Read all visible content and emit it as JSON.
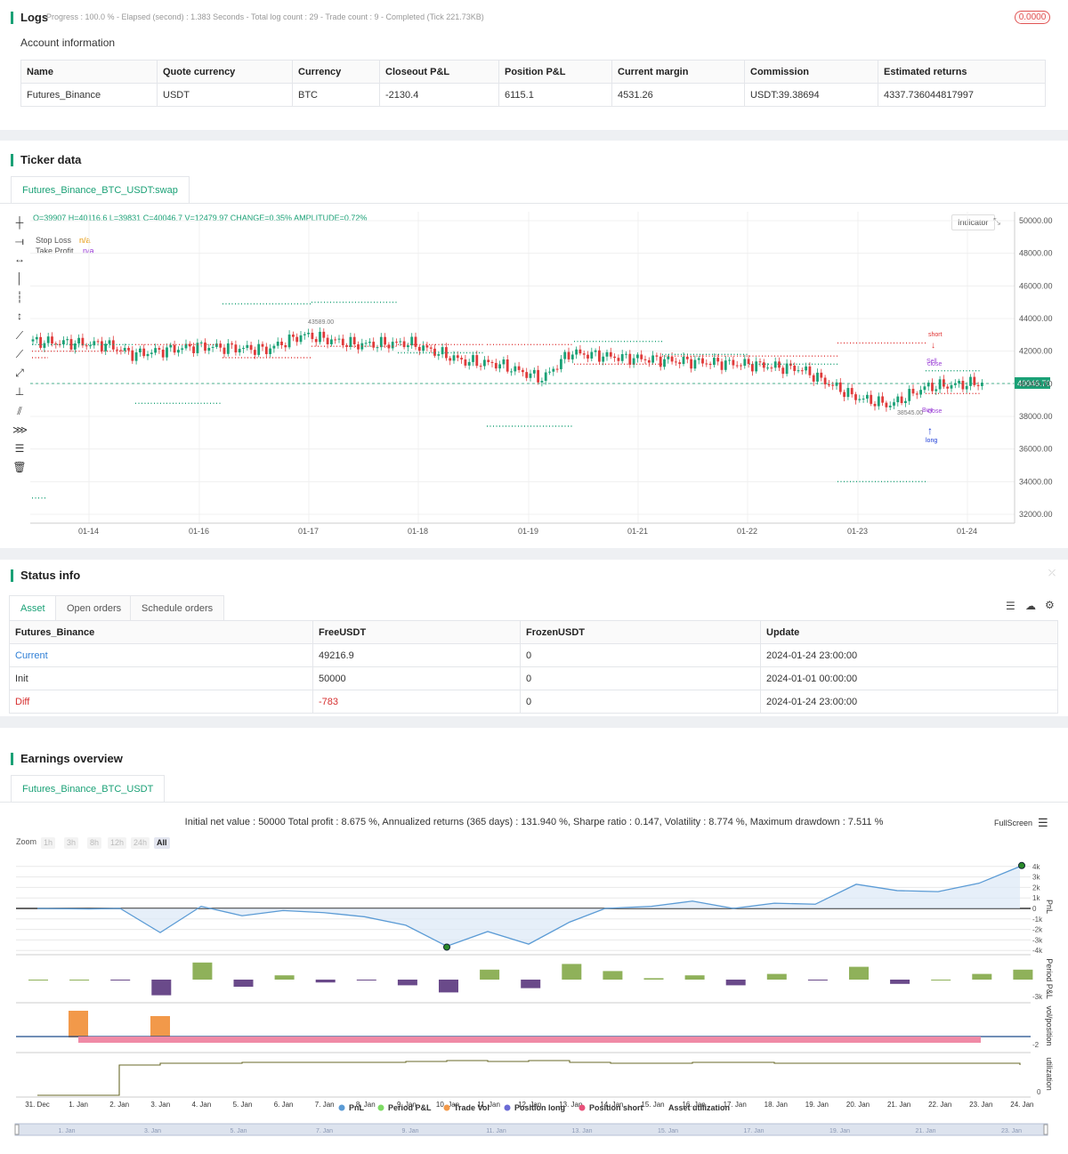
{
  "logs": {
    "title": "Logs",
    "progress": "Progress : 100.0 % - Elapsed (second) : 1.383  Seconds - Total log count : 29 - Trade count : 9 - Completed (Tick 221.73KB)",
    "badge": "0.0000",
    "account_title": "Account information",
    "account_headers": [
      "Name",
      "Quote currency",
      "Currency",
      "Closeout P&L",
      "Position P&L",
      "Current margin",
      "Commission",
      "Estimated returns"
    ],
    "account_row": [
      "Futures_Binance",
      "USDT",
      "BTC",
      "-2130.4",
      "6115.1",
      "4531.26",
      "USDT:39.38694",
      "4337.736044817997"
    ]
  },
  "ticker": {
    "title": "Ticker data",
    "tab": "Futures_Binance_BTC_USDT:swap",
    "ohlc": "O=39907 H=40116.6 L=39831 C=40046.7 V=12479.97 CHANGE=0.35% AMPLITUDE=0.72%",
    "stop_loss_label": "Stop Loss",
    "stop_loss_value": "n/a",
    "take_profit_label": "Take Profit",
    "take_profit_value": "n/a",
    "indicator_btn": "Indicator",
    "price_tag": "40046.70",
    "y_ticks": [
      "50000.00",
      "48000.00",
      "46000.00",
      "44000.00",
      "42000.00",
      "40000.00",
      "38000.00",
      "36000.00",
      "34000.00",
      "32000.00"
    ],
    "x_ticks": [
      "01-14",
      "01-16",
      "01-17",
      "01-18",
      "01-19",
      "01-21",
      "01-22",
      "01-23",
      "01-24"
    ],
    "high_mark": "43589.00",
    "low_mark": "38545.00",
    "sig_short": "short",
    "sig_sell": "Sell",
    "sig_close1": "close",
    "sig_buy": "Buy",
    "sig_close2": "close",
    "sig_long": "long"
  },
  "status": {
    "title": "Status info",
    "tabs": [
      "Asset",
      "Open orders",
      "Schedule orders"
    ],
    "headers": [
      "Futures_Binance",
      "FreeUSDT",
      "FrozenUSDT",
      "Update"
    ],
    "rows": [
      [
        "Current",
        "49216.9",
        "0",
        "2024-01-24 23:00:00"
      ],
      [
        "Init",
        "50000",
        "0",
        "2024-01-01 00:00:00"
      ],
      [
        "Diff",
        "-783",
        "0",
        "2024-01-24 23:00:00"
      ]
    ]
  },
  "earnings": {
    "title": "Earnings overview",
    "tab": "Futures_Binance_BTC_USDT",
    "summary": "Initial net value : 50000 Total profit : 8.675 %, Annualized returns (365 days) : 131.940 %, Sharpe ratio : 0.147, Volatility : 8.774 %, Maximum drawdown : 7.511 %",
    "fullscreen": "FullScreen",
    "zoom_label": "Zoom",
    "zoom_opts": [
      "1h",
      "3h",
      "8h",
      "12h",
      "24h",
      "All"
    ],
    "pnl_ticks": [
      "4k",
      "3k",
      "2k",
      "1k",
      "0",
      "-1k",
      "-2k",
      "-3k",
      "-4k"
    ],
    "period_tick": "-3k",
    "vol_tick": "-2",
    "util_tick": "0",
    "axis_titles": [
      "PnL",
      "Period P&L",
      "vol/position",
      "utilization"
    ],
    "x_ticks": [
      "31. Dec",
      "1. Jan",
      "2. Jan",
      "3. Jan",
      "4. Jan",
      "5. Jan",
      "6. Jan",
      "7. Jan",
      "8. Jan",
      "9. Jan",
      "10. Jan",
      "11. Jan",
      "12. Jan",
      "13. Jan",
      "14. Jan",
      "15. Jan",
      "16. Jan",
      "17. Jan",
      "18. Jan",
      "19. Jan",
      "20. Jan",
      "21. Jan",
      "22. Jan",
      "23. Jan",
      "24. Jan"
    ],
    "legend": [
      "PnL",
      "Period P&L",
      "Trade Vol",
      "Position long",
      "Position short",
      "Asset utilization"
    ],
    "nav_ticks": [
      "1. Jan",
      "3. Jan",
      "5. Jan",
      "7. Jan",
      "9. Jan",
      "11. Jan",
      "13. Jan",
      "15. Jan",
      "17. Jan",
      "19. Jan",
      "21. Jan",
      "23. Jan"
    ],
    "colors": {
      "pnl": "#5b9bd5",
      "period": "#7cc15a",
      "trade": "#f2994a",
      "long": "#6b6bd5",
      "short": "#e8517a",
      "util": "#333333"
    }
  }
}
